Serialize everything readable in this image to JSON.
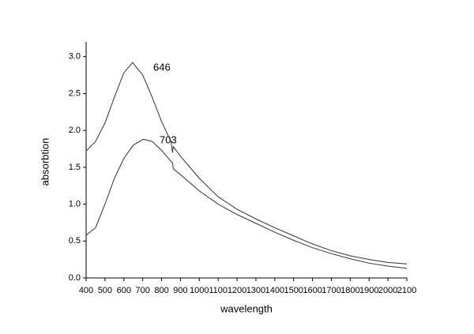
{
  "chart_data": {
    "type": "line",
    "x_label": "wavelength",
    "y_label": "absorbtion",
    "annotations": [
      "646",
      "703"
    ],
    "series": [
      {
        "color": "#333333",
        "x": [
          400,
          450,
          500,
          550,
          600,
          646,
          700,
          750,
          800,
          850,
          858,
          862,
          900,
          1000,
          1100,
          1200,
          1300,
          1400,
          1500,
          1600,
          1700,
          1800,
          1900,
          2000,
          2100
        ],
        "values": [
          1.72,
          1.85,
          2.1,
          2.45,
          2.78,
          2.92,
          2.75,
          2.45,
          2.12,
          1.85,
          1.7,
          1.78,
          1.65,
          1.35,
          1.1,
          0.93,
          0.8,
          0.68,
          0.57,
          0.46,
          0.37,
          0.3,
          0.25,
          0.21,
          0.19
        ]
      },
      {
        "color": "#333333",
        "x": [
          400,
          450,
          500,
          550,
          600,
          650,
          703,
          750,
          800,
          850,
          858,
          862,
          900,
          1000,
          1100,
          1200,
          1300,
          1400,
          1500,
          1600,
          1700,
          1800,
          1900,
          2000,
          2100
        ],
        "values": [
          0.58,
          0.68,
          1.0,
          1.35,
          1.62,
          1.8,
          1.88,
          1.85,
          1.73,
          1.58,
          1.56,
          1.48,
          1.4,
          1.18,
          1.0,
          0.86,
          0.74,
          0.62,
          0.51,
          0.41,
          0.33,
          0.26,
          0.2,
          0.16,
          0.13
        ]
      }
    ],
    "xlim": [
      400,
      2100
    ],
    "xticks": [
      400,
      500,
      600,
      700,
      800,
      900,
      1000,
      1100,
      1200,
      1300,
      1400,
      1500,
      1600,
      1700,
      1800,
      1900,
      2000,
      2100
    ],
    "ylim": [
      0,
      3.2
    ],
    "yticks": [
      {
        "value": 0,
        "label": "0.0"
      },
      {
        "value": 0.5,
        "label": "0.5"
      },
      {
        "value": 1,
        "label": "1.0"
      },
      {
        "value": 1.5,
        "label": "1.5"
      },
      {
        "value": 2,
        "label": "2.0"
      },
      {
        "value": 2.5,
        "label": "2.5"
      },
      {
        "value": 3,
        "label": "3.0"
      }
    ],
    "grid": false
  }
}
